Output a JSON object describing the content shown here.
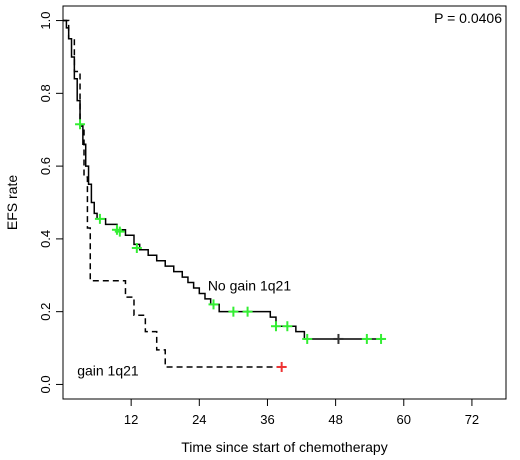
{
  "chart_data": {
    "type": "line",
    "subtype": "kaplan-meier",
    "xlabel": "Time since start of chemotherapy",
    "ylabel": "EFS rate",
    "xlim": [
      0,
      78
    ],
    "ylim": [
      -0.04,
      1.04
    ],
    "xticks": [
      12,
      24,
      36,
      48,
      60,
      72
    ],
    "xtick_labels": [
      "12",
      "24",
      "36",
      "48",
      "60",
      "72"
    ],
    "yticks": [
      0.0,
      0.2,
      0.4,
      0.6,
      0.8,
      1.0
    ],
    "ytick_labels": [
      "0.0",
      "0.2",
      "0.4",
      "0.6",
      "0.8",
      "1.0"
    ],
    "grid": false,
    "annotations": [
      {
        "text": "P = 0.0406",
        "position": "top-right"
      }
    ],
    "series": [
      {
        "name": "No gain 1q21",
        "style": "solid",
        "color": "#000000",
        "censor_color": "#33ee33",
        "steps": [
          [
            0,
            1.0
          ],
          [
            0.6,
            0.98
          ],
          [
            1.0,
            0.95
          ],
          [
            1.5,
            0.9
          ],
          [
            2.0,
            0.84
          ],
          [
            2.5,
            0.78
          ],
          [
            3.0,
            0.715
          ],
          [
            3.5,
            0.66
          ],
          [
            4.0,
            0.6
          ],
          [
            4.5,
            0.55
          ],
          [
            5.0,
            0.5
          ],
          [
            5.5,
            0.47
          ],
          [
            6.0,
            0.455
          ],
          [
            7.5,
            0.44
          ],
          [
            9.5,
            0.425
          ],
          [
            11.0,
            0.41
          ],
          [
            12.5,
            0.385
          ],
          [
            13.5,
            0.37
          ],
          [
            15.0,
            0.355
          ],
          [
            16.5,
            0.34
          ],
          [
            18.0,
            0.325
          ],
          [
            19.5,
            0.31
          ],
          [
            21.0,
            0.295
          ],
          [
            22.0,
            0.28
          ],
          [
            23.0,
            0.265
          ],
          [
            24.0,
            0.25
          ],
          [
            25.0,
            0.235
          ],
          [
            26.0,
            0.22
          ],
          [
            27.5,
            0.2
          ],
          [
            36.5,
            0.185
          ],
          [
            37.5,
            0.16
          ],
          [
            41.0,
            0.145
          ],
          [
            42.5,
            0.125
          ],
          [
            56.5,
            0.125
          ]
        ],
        "censored": [
          {
            "t": 3.0,
            "s": 0.715
          },
          {
            "t": 6.5,
            "s": 0.455
          },
          {
            "t": 9.5,
            "s": 0.425
          },
          {
            "t": 10.0,
            "s": 0.42
          },
          {
            "t": 13.0,
            "s": 0.375
          },
          {
            "t": 26.5,
            "s": 0.22
          },
          {
            "t": 30.0,
            "s": 0.2
          },
          {
            "t": 32.5,
            "s": 0.2
          },
          {
            "t": 37.5,
            "s": 0.16
          },
          {
            "t": 39.5,
            "s": 0.16
          },
          {
            "t": 43.0,
            "s": 0.125
          },
          {
            "t": 48.5,
            "s": 0.125,
            "color": "#333333"
          },
          {
            "t": 53.5,
            "s": 0.125
          },
          {
            "t": 56.0,
            "s": 0.125
          }
        ]
      },
      {
        "name": "gain 1q21",
        "style": "dashed",
        "color": "#000000",
        "censor_color": "#ee3333",
        "steps": [
          [
            0,
            1.0
          ],
          [
            1.0,
            0.95
          ],
          [
            2.0,
            0.86
          ],
          [
            3.0,
            0.71
          ],
          [
            3.7,
            0.57
          ],
          [
            4.3,
            0.43
          ],
          [
            4.8,
            0.285
          ],
          [
            11.0,
            0.24
          ],
          [
            12.5,
            0.19
          ],
          [
            14.5,
            0.145
          ],
          [
            16.5,
            0.095
          ],
          [
            18.0,
            0.048
          ],
          [
            38.5,
            0.048
          ]
        ],
        "censored": [
          {
            "t": 38.5,
            "s": 0.048
          }
        ]
      }
    ]
  },
  "labels": {
    "series_no_gain": "No gain 1q21",
    "series_gain": "gain 1q21"
  }
}
